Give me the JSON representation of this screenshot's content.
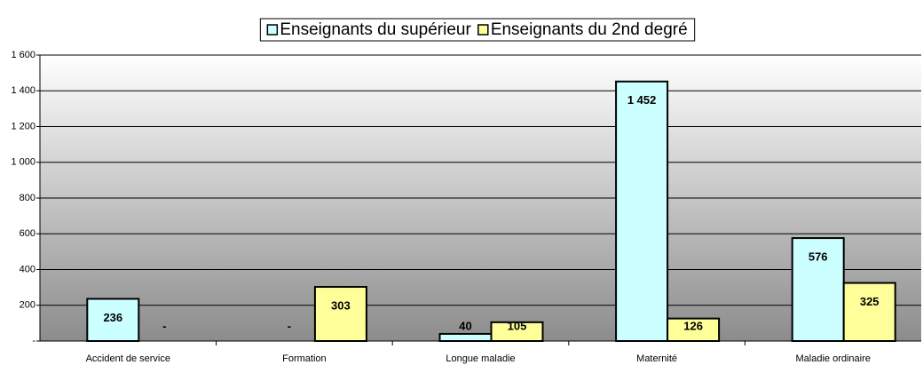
{
  "chart_data": {
    "type": "bar",
    "categories": [
      "Accident de service",
      "Formation",
      "Longue maladie",
      "Maternité",
      "Maladie ordinaire"
    ],
    "series": [
      {
        "name": "Enseignants du supérieur",
        "color": "#ccffff",
        "values": [
          236,
          0,
          40,
          1452,
          576
        ],
        "value_labels": [
          "236",
          "-",
          "40",
          "1 452",
          "576"
        ]
      },
      {
        "name": "Enseignants du 2nd degré",
        "color": "#ffff99",
        "values": [
          0,
          303,
          105,
          126,
          325
        ],
        "value_labels": [
          "-",
          "303",
          "105",
          "126",
          "325"
        ]
      }
    ],
    "ylim": [
      0,
      1600
    ],
    "yticks": [
      {
        "value": 0,
        "label": "-"
      },
      200,
      400,
      600,
      800,
      {
        "value": 1000,
        "label": "1 000"
      },
      {
        "value": 1200,
        "label": "1 200"
      },
      {
        "value": 1400,
        "label": "1 400"
      },
      {
        "value": 1600,
        "label": "1 600"
      }
    ],
    "grid": true,
    "legend": "top"
  }
}
